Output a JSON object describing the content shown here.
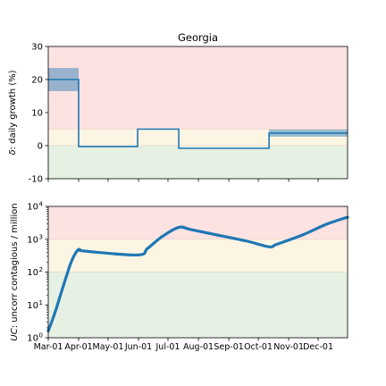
{
  "chart_data": [
    {
      "type": "line",
      "title": "Georgia",
      "ylabel": "δ: daily growth (%)",
      "ylabel_symbol": "δ",
      "ylabel_rest": ": daily growth (%)",
      "xlim": [
        "2020-03-01",
        "2020-12-31"
      ],
      "ylim": [
        -10,
        30
      ],
      "yticks": [
        -10,
        0,
        10,
        20,
        30
      ],
      "zones": [
        {
          "from": 5,
          "to": 30,
          "color": "#fde2e2"
        },
        {
          "from": 0,
          "to": 5,
          "color": "#fdf5e4"
        },
        {
          "from": -10,
          "to": 0,
          "color": "#e6f1e4"
        }
      ],
      "series": [
        {
          "color": "#1f77b4",
          "steps": [
            {
              "x0": "2020-03-01",
              "x1": "2020-04-01",
              "y": 20
            },
            {
              "x0": "2020-04-01",
              "x1": "2020-05-31",
              "y": -0.3
            },
            {
              "x0": "2020-05-31",
              "x1": "2020-07-12",
              "y": 5
            },
            {
              "x0": "2020-07-12",
              "x1": "2020-10-12",
              "y": -0.8
            },
            {
              "x0": "2020-10-12",
              "x1": "2020-12-31",
              "y": 3.8
            }
          ],
          "bands": [
            {
              "x0": "2020-03-01",
              "x1": "2020-04-01",
              "low": 16.5,
              "high": 23.5
            },
            {
              "x0": "2020-10-12",
              "x1": "2020-12-31",
              "low": 2.7,
              "high": 4.9
            }
          ]
        }
      ]
    },
    {
      "type": "line",
      "ylabel": "UC: uncorr contagious / million",
      "ylabel_symbol": "UC",
      "ylabel_rest": ": uncorr contagious / million",
      "yscale": "log",
      "ylim": [
        1,
        10000
      ],
      "yticks": [
        {
          "base": "10",
          "exp": "0"
        },
        {
          "base": "10",
          "exp": "1"
        },
        {
          "base": "10",
          "exp": "2"
        },
        {
          "base": "10",
          "exp": "3"
        },
        {
          "base": "10",
          "exp": "4"
        }
      ],
      "zones": [
        {
          "from": 1000,
          "to": 10000,
          "color": "#fde2e2"
        },
        {
          "from": 100,
          "to": 1000,
          "color": "#fdf5e4"
        },
        {
          "from": 1,
          "to": 100,
          "color": "#e6f1e4"
        }
      ],
      "categories": [
        "Mar-01",
        "Apr-01",
        "May-01",
        "Jun-01",
        "Jul-01",
        "Aug-01",
        "Sep-01",
        "Oct-01",
        "Nov-01",
        "Dec-01"
      ],
      "xtick_dates": [
        "2020-03-01",
        "2020-04-01",
        "2020-05-01",
        "2020-06-01",
        "2020-07-01",
        "2020-08-01",
        "2020-09-01",
        "2020-10-01",
        "2020-11-01",
        "2020-12-01"
      ],
      "series": [
        {
          "color": "#1f77b4",
          "points": [
            [
              "2020-03-01",
              1.6
            ],
            [
              "2020-03-08",
              6
            ],
            [
              "2020-03-16",
              35
            ],
            [
              "2020-03-24",
              190
            ],
            [
              "2020-03-30",
              430
            ],
            [
              "2020-04-02",
              490
            ],
            [
              "2020-04-06",
              440
            ],
            [
              "2020-05-31",
              330
            ],
            [
              "2020-06-10",
              520
            ],
            [
              "2020-06-25",
              1200
            ],
            [
              "2020-07-12",
              2300
            ],
            [
              "2020-07-25",
              1950
            ],
            [
              "2020-08-20",
              1350
            ],
            [
              "2020-09-20",
              870
            ],
            [
              "2020-10-12",
              590
            ],
            [
              "2020-10-20",
              700
            ],
            [
              "2020-11-15",
              1350
            ],
            [
              "2020-12-10",
              2900
            ],
            [
              "2020-12-31",
              4700
            ]
          ]
        }
      ]
    }
  ]
}
